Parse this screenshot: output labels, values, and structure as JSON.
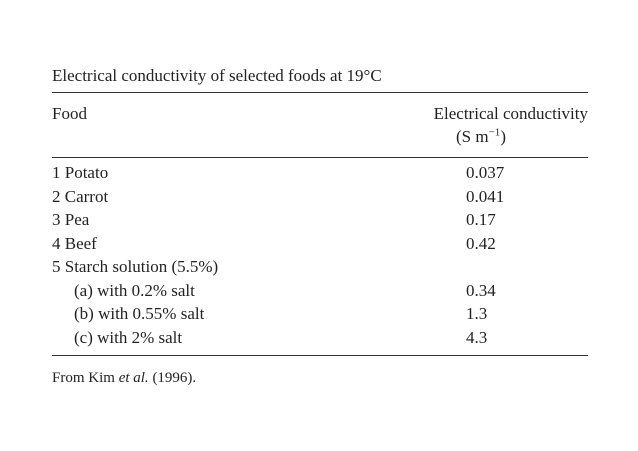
{
  "title": "Electrical conductivity of selected foods at 19°C",
  "header": {
    "food": "Food",
    "conductivity": "Electrical conductivity",
    "unit": {
      "base": "(S m",
      "exp": "−1",
      "close": ")"
    }
  },
  "rows": [
    {
      "label": "1 Potato",
      "value": "0.037"
    },
    {
      "label": "2 Carrot",
      "value": "0.041"
    },
    {
      "label": "3 Pea",
      "value": "0.17"
    },
    {
      "label": "4 Beef",
      "value": "0.42"
    },
    {
      "label": "5 Starch solution (5.5%)",
      "subrows": [
        {
          "label": "(a) with 0.2% salt",
          "value": "0.34"
        },
        {
          "label": "(b) with 0.55% salt",
          "value": "1.3"
        },
        {
          "label": "(c) with 2% salt",
          "value": "4.3"
        }
      ]
    }
  ],
  "footnote": {
    "before": "From Kim ",
    "italic": "et al.",
    "after": " (1996)."
  }
}
